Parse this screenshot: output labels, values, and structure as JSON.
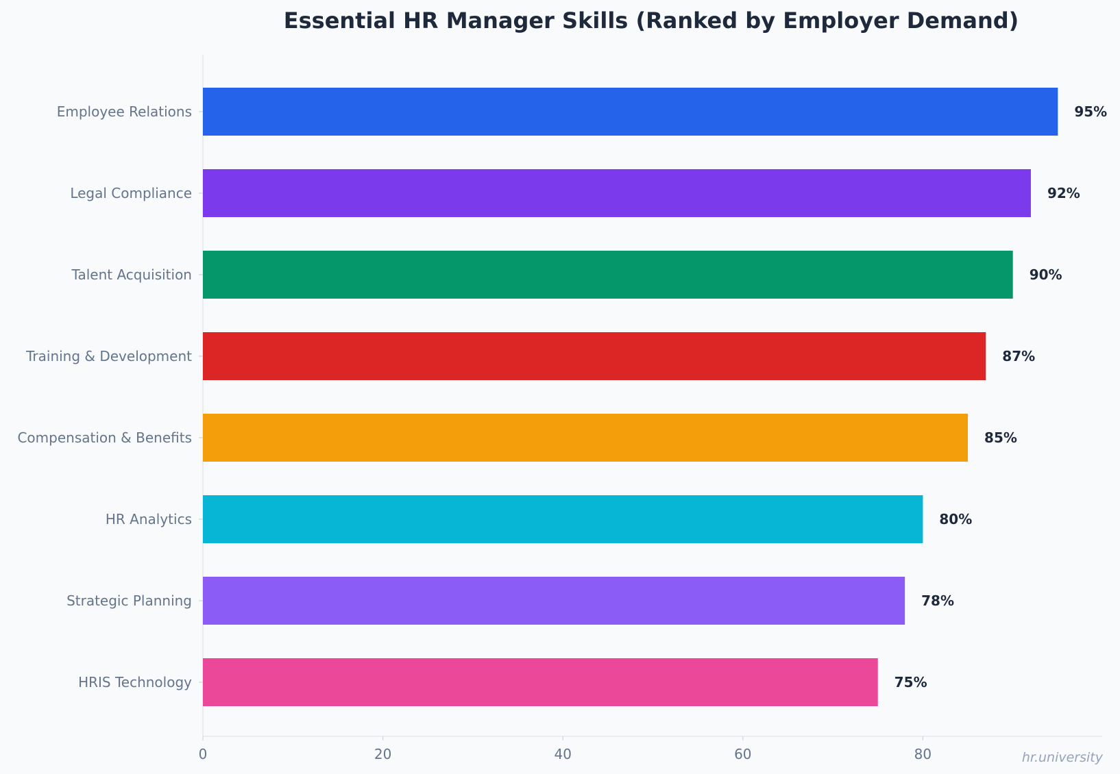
{
  "chart_data": {
    "type": "bar",
    "orientation": "horizontal",
    "title": "Essential HR Manager Skills (Ranked by Employer Demand)",
    "xlabel": "",
    "ylabel": "",
    "xlim": [
      0,
      100
    ],
    "xticks": [
      0,
      20,
      40,
      60,
      80
    ],
    "grid": false,
    "value_suffix": "%",
    "categories": [
      "Employee Relations",
      "Legal Compliance",
      "Talent Acquisition",
      "Training & Development",
      "Compensation & Benefits",
      "HR Analytics",
      "Strategic Planning",
      "HRIS Technology"
    ],
    "values": [
      95,
      92,
      90,
      87,
      85,
      80,
      78,
      75
    ],
    "colors": [
      "#2563eb",
      "#7c3aed",
      "#059669",
      "#dc2626",
      "#f59e0b",
      "#06b6d4",
      "#8b5cf6",
      "#ec4899"
    ]
  },
  "watermark": "hr.university"
}
